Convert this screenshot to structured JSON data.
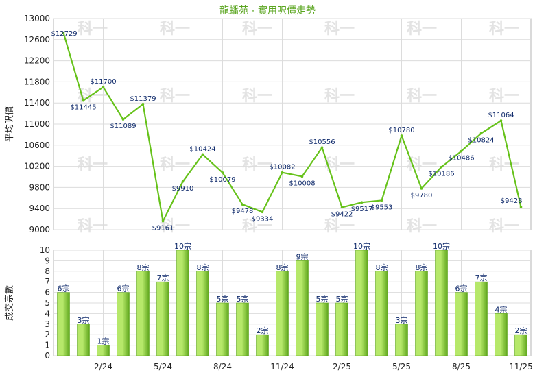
{
  "chart_data": [
    {
      "type": "line",
      "title": "龍蟠苑 - 實用呎價走勢",
      "ylabel": "平均呎價",
      "ylim": [
        9000,
        13000
      ],
      "yticks": [
        9000,
        9400,
        9800,
        10200,
        10600,
        11000,
        11400,
        11800,
        12200,
        12600,
        13000
      ],
      "x_tick_labels": [
        "2/24",
        "5/24",
        "8/24",
        "11/24",
        "2/25",
        "5/25",
        "8/25",
        "11/25"
      ],
      "series": [
        {
          "values": [
            12729,
            11445,
            11700,
            11089,
            11379,
            9161,
            9910,
            10424,
            10079,
            9478,
            9334,
            10082,
            10008,
            10556,
            9422,
            9517,
            9553,
            10780,
            9780,
            10186,
            10486,
            10824,
            11064,
            9428
          ],
          "labels": [
            "$12729",
            "$11445",
            "$11700",
            "$11089",
            "$11379",
            "$9161",
            "$9910",
            "$10424",
            "$10079",
            "$9478",
            "$9334",
            "$10082",
            "$10008",
            "$10556",
            "$9422",
            "$9517",
            "$9553",
            "$10780",
            "$9780",
            "$10186",
            "$10486",
            "$10824",
            "$11064",
            "$9428"
          ]
        }
      ],
      "colors": {
        "line": "#66c21a"
      },
      "watermark": "科一",
      "grid": true
    },
    {
      "type": "bar",
      "ylabel": "成交宗數",
      "ylim": [
        0,
        10
      ],
      "yticks": [
        0,
        1,
        2,
        3,
        4,
        5,
        6,
        7,
        8,
        9,
        10
      ],
      "x_tick_labels": [
        "2/24",
        "5/24",
        "8/24",
        "11/24",
        "2/25",
        "5/25",
        "8/25",
        "11/25"
      ],
      "values": [
        6,
        3,
        1,
        6,
        8,
        7,
        10,
        8,
        5,
        5,
        2,
        8,
        9,
        5,
        5,
        10,
        8,
        3,
        8,
        10,
        6,
        7,
        4,
        2
      ],
      "labels": [
        "6宗",
        "3宗",
        "1宗",
        "6宗",
        "8宗",
        "7宗",
        "10宗",
        "8宗",
        "5宗",
        "5宗",
        "2宗",
        "8宗",
        "9宗",
        "5宗",
        "5宗",
        "10宗",
        "8宗",
        "3宗",
        "8宗",
        "10宗",
        "6宗",
        "7宗",
        "4宗",
        "2宗"
      ],
      "colors": {
        "bar_light": "#b6e86a",
        "bar_dark": "#5ea61c"
      },
      "grid": true
    }
  ]
}
